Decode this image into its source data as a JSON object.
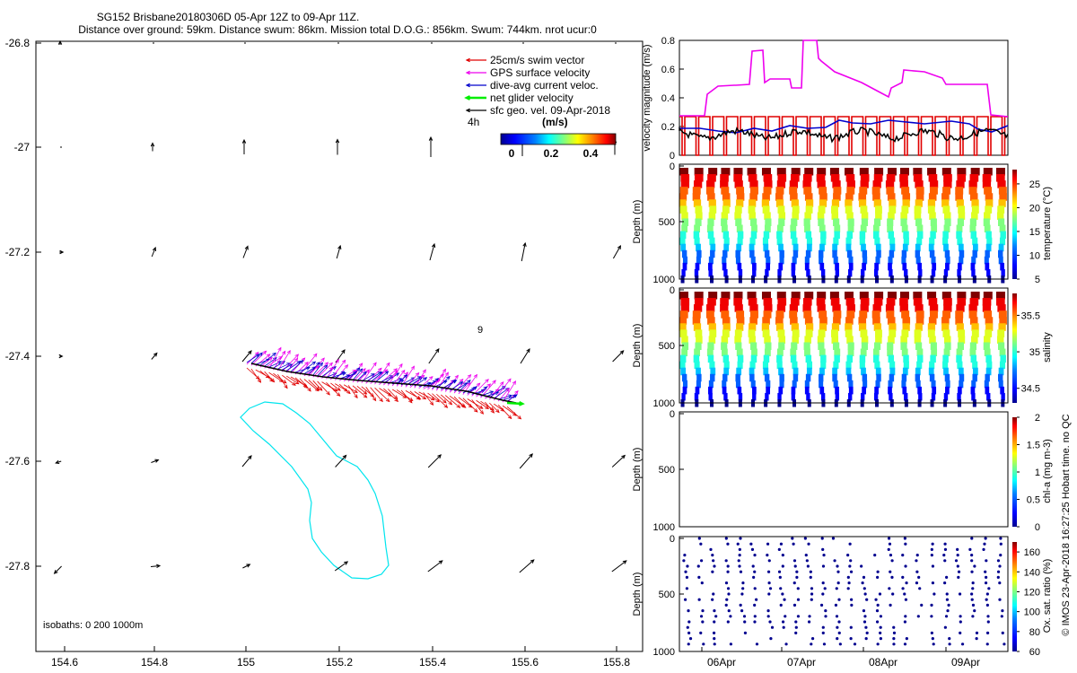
{
  "header": {
    "title_line1": "SG152 Brisbane20180306D 05-Apr 12Z to 09-Apr 11Z.",
    "title_line2": "Distance over ground: 59km. Distance swum: 86km. Mission total D.O.G.: 856km. Swum: 744km. nrot ucur:0"
  },
  "map": {
    "xticks": [
      "154.6",
      "154.8",
      "155",
      "155.2",
      "155.4",
      "155.6",
      "155.8"
    ],
    "yticks": [
      "-26.8",
      "-27",
      "-27.2",
      "-27.4",
      "-27.6",
      "-27.8"
    ],
    "legend": [
      {
        "label": "25cm/s swim vector",
        "color": "#e00000"
      },
      {
        "label": "GPS surface velocity",
        "color": "#ee00ee"
      },
      {
        "label": "dive-avg current veloc.",
        "color": "#0000cc"
      },
      {
        "label": "net glider velocity",
        "color": "#00ee00"
      },
      {
        "label": "sfc geo. vel. 09-Apr-2018",
        "color": "#000000"
      }
    ],
    "interval_label": "4h",
    "colorbar": {
      "title": "(m/s)",
      "ticks": [
        "0",
        "0.2",
        "0.4"
      ],
      "colors": [
        "#00008f",
        "#0000ff",
        "#0080ff",
        "#00ffff",
        "#80ff80",
        "#ffff00",
        "#ff8000",
        "#ff0000",
        "#800000"
      ]
    },
    "marker_label": "9",
    "isobath_label": "isobaths: 0   200  1000m",
    "colors": {
      "isobath": "#00e5ee",
      "vector": "#000000"
    }
  },
  "panels": {
    "velocity": {
      "ylabel": "velocity magnitude (m/s)",
      "yticks": [
        "0",
        "0.2",
        "0.4",
        "0.6",
        "0.8"
      ]
    },
    "depth_ylabel": "Depth (m)",
    "depth_ticks": [
      "0",
      "500",
      "1000"
    ],
    "temperature": {
      "clabel": "temperature (°C)",
      "cticks": [
        "5",
        "10",
        "15",
        "20",
        "25"
      ]
    },
    "salinity": {
      "clabel": "salinity",
      "cticks": [
        "34.5",
        "35",
        "35.5"
      ]
    },
    "chla": {
      "clabel": "chl-a (mg m-3)",
      "cticks": [
        "0",
        "0.5",
        "1",
        "1.5",
        "2"
      ]
    },
    "oxygen": {
      "clabel": "Ox. sat. ratio (%)",
      "cticks": [
        "60",
        "80",
        "100",
        "120",
        "140",
        "160"
      ]
    },
    "date_ticks": [
      "06Apr",
      "07Apr",
      "08Apr",
      "09Apr"
    ],
    "jet_colors": [
      "#00008f",
      "#0000ff",
      "#0060ff",
      "#00c0ff",
      "#20ffdf",
      "#80ff80",
      "#dfff20",
      "#ffc000",
      "#ff6000",
      "#f00000",
      "#800000"
    ]
  },
  "credit": "© IMOS 23-Apr-2018 16:27:25 Hobart time. no QC"
}
